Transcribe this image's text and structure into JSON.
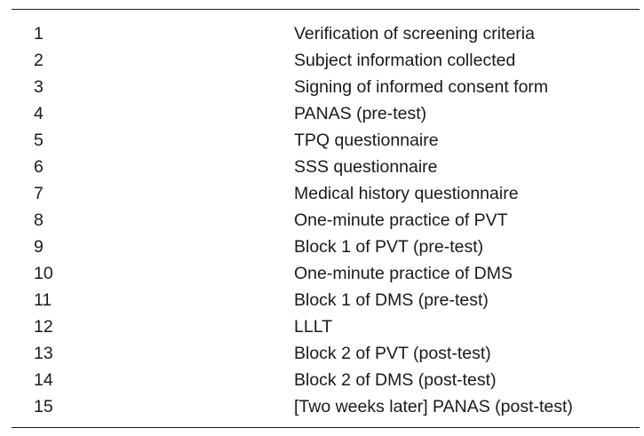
{
  "table": {
    "rows": [
      {
        "number": "1",
        "step": "Verification of screening criteria"
      },
      {
        "number": "2",
        "step": "Subject information collected"
      },
      {
        "number": "3",
        "step": "Signing of informed consent form"
      },
      {
        "number": "4",
        "step": "PANAS (pre-test)"
      },
      {
        "number": "5",
        "step": "TPQ questionnaire"
      },
      {
        "number": "6",
        "step": "SSS questionnaire"
      },
      {
        "number": "7",
        "step": "Medical history questionnaire"
      },
      {
        "number": "8",
        "step": "One-minute practice of PVT"
      },
      {
        "number": "9",
        "step": "Block 1 of PVT (pre-test)"
      },
      {
        "number": "10",
        "step": "One-minute practice of DMS"
      },
      {
        "number": "11",
        "step": "Block 1 of DMS (pre-test)"
      },
      {
        "number": "12",
        "step": "LLLT"
      },
      {
        "number": "13",
        "step": "Block 2 of PVT (post-test)"
      },
      {
        "number": "14",
        "step": "Block 2 of DMS (post-test)"
      },
      {
        "number": "15",
        "step": "[Two weeks later] PANAS (post-test)"
      }
    ]
  }
}
